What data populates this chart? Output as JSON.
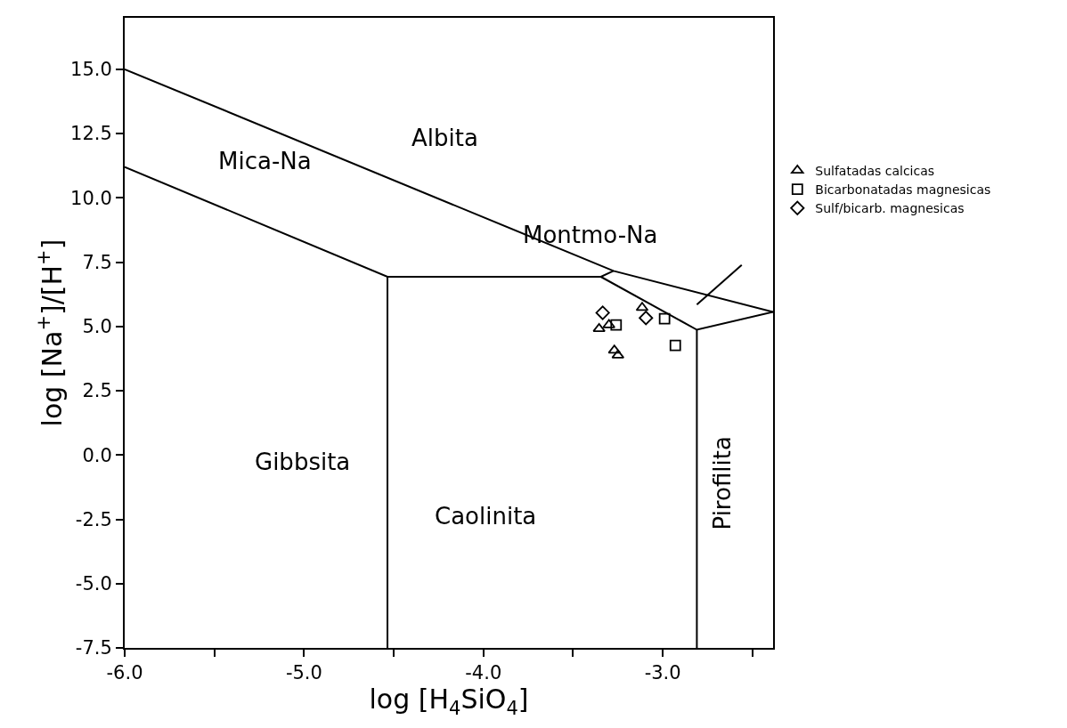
{
  "chart_data": {
    "type": "scatter",
    "xlabel": "log [H$_{4}$SiO$_{4}$]",
    "ylabel": "log [Na$^{+}$]/[H$^{+}$]",
    "xlim": [
      -6,
      -2.385
    ],
    "ylim": [
      -7.5,
      17
    ],
    "xticks": [
      {
        "value": -6,
        "label": "-6.0"
      },
      {
        "value": -5.5,
        "label": null
      },
      {
        "value": -5,
        "label": "-5.0"
      },
      {
        "value": -4.5,
        "label": null
      },
      {
        "value": -4,
        "label": "-4.0"
      },
      {
        "value": -3.5,
        "label": null
      },
      {
        "value": -3,
        "label": "-3.0"
      },
      {
        "value": -2.5,
        "label": null
      }
    ],
    "yticks": [
      {
        "value": -7.5,
        "label": "-7.5"
      },
      {
        "value": -5,
        "label": "-5.0"
      },
      {
        "value": -2.5,
        "label": "-2.5"
      },
      {
        "value": 0,
        "label": "0.0"
      },
      {
        "value": 2.5,
        "label": "2.5"
      },
      {
        "value": 5,
        "label": "5.0"
      },
      {
        "value": 7.5,
        "label": "7.5"
      },
      {
        "value": 10,
        "label": "10.0"
      },
      {
        "value": 12.5,
        "label": "12.5"
      },
      {
        "value": 15,
        "label": "15.0"
      }
    ],
    "grid": false,
    "legend": "top right",
    "series": [
      {
        "type": "line",
        "color": "#000000",
        "marker": "none",
        "x": [
          -6,
          -3.275,
          -2.385
        ],
        "values": [
          15,
          7.16,
          5.56
        ]
      },
      {
        "type": "line",
        "color": "#000000",
        "marker": "none",
        "x": [
          -6,
          -4.535,
          -3.345,
          -3.275
        ],
        "values": [
          11.2,
          6.93,
          6.93,
          7.16
        ]
      },
      {
        "type": "line",
        "color": "#000000",
        "marker": "none",
        "x": [
          -3.345,
          -2.81,
          -2.385
        ],
        "values": [
          6.93,
          4.87,
          5.56
        ]
      },
      {
        "type": "line",
        "color": "#000000",
        "marker": "none",
        "x": [
          -4.535,
          -4.535
        ],
        "values": [
          6.93,
          -7.5
        ]
      },
      {
        "type": "line",
        "color": "#000000",
        "marker": "none",
        "x": [
          -2.81,
          -2.81
        ],
        "values": [
          4.87,
          -7.5
        ]
      },
      {
        "type": "line",
        "color": "#000000",
        "marker": "none",
        "x": [
          -2.81,
          -2.56
        ],
        "values": [
          5.85,
          7.39
        ]
      },
      {
        "name": "Sulfatadas calcicas",
        "color": "#000000",
        "marker": "triangle",
        "x": [
          -3.355,
          -3.3,
          -3.115,
          -3.27,
          -3.25
        ],
        "values": [
          4.91,
          5.06,
          5.73,
          4.07,
          3.88
        ]
      },
      {
        "name": "Bicarbonatadas magnesicas",
        "color": "#000000",
        "marker": "square",
        "x": [
          -3.26,
          -2.99,
          -2.93
        ],
        "values": [
          5.06,
          5.3,
          4.26
        ]
      },
      {
        "name": "Sulf/bicarb. magnesicas",
        "color": "#000000",
        "marker": "diamond",
        "x": [
          -3.335,
          -3.094
        ],
        "values": [
          5.53,
          5.33
        ]
      }
    ],
    "annotations": [
      "Albita",
      "Mica-Na",
      "Montmo-Na",
      "Gibbsita",
      "Caolinita",
      "Pirofilita"
    ]
  }
}
